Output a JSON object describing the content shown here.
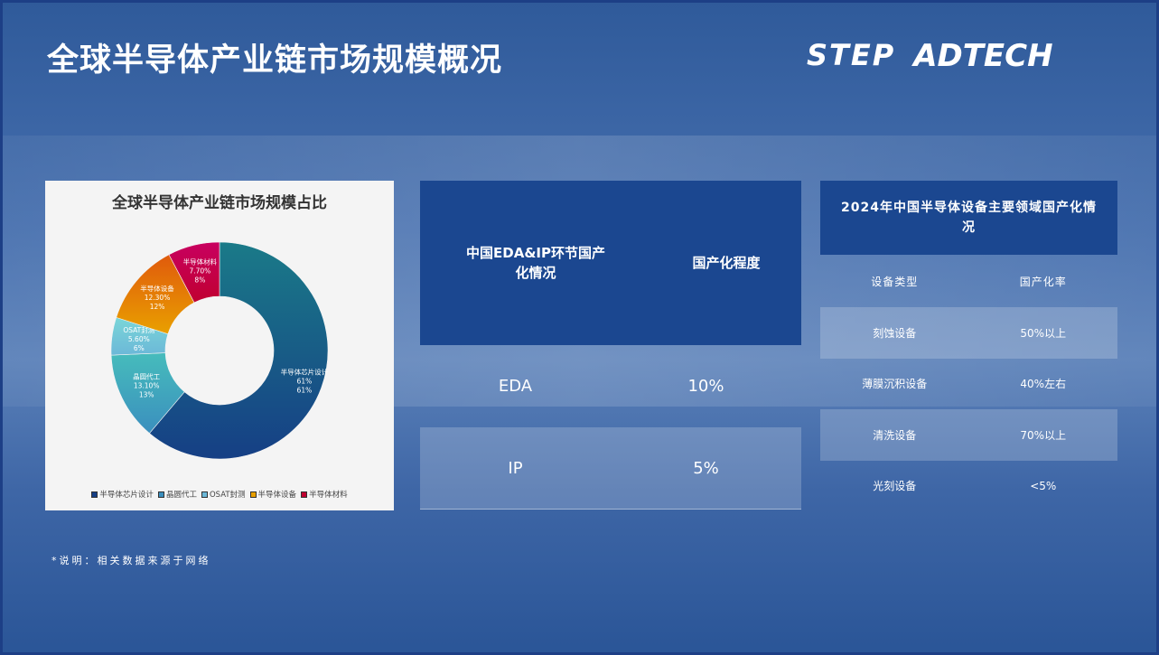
{
  "page": {
    "title": "全球半导体产业链市场规模概况",
    "logo": {
      "left": "STEP",
      "right": "ADTECH"
    },
    "note": "*说明：相关数据来源于网络"
  },
  "chart_data": {
    "type": "pie",
    "donut": true,
    "title": "全球半导体产业链市场规模占比",
    "categories": [
      "半导体芯片设计",
      "晶圆代工",
      "OSAT封测",
      "半导体设备",
      "半导体材料"
    ],
    "values": [
      61,
      13.1,
      5.6,
      12.3,
      7.7
    ],
    "value_labels": [
      "61%",
      "13.10%",
      "5.60%",
      "12.30%",
      "7.70%"
    ],
    "percent_labels": [
      "61%",
      "13%",
      "6%",
      "12%",
      "8%"
    ],
    "colors": [
      [
        "#1a7a88",
        "#163f85"
      ],
      [
        "#46bcbc",
        "#3b8fbe"
      ],
      [
        "#7ad6d8",
        "#6cb8d8"
      ],
      [
        "#e05a0c",
        "#e9a000"
      ],
      [
        "#c80060",
        "#c00030"
      ]
    ],
    "legend_placement": "bottom"
  },
  "eda_table": {
    "headers": [
      "中国EDA&IP环节国产化情况",
      "国产化程度"
    ],
    "rows": [
      [
        "EDA",
        "10%"
      ],
      [
        "IP",
        "5%"
      ]
    ]
  },
  "equip_table": {
    "title": "2024年中国半导体设备主要领域国产化情况",
    "headers": [
      "设备类型",
      "国产化率"
    ],
    "rows": [
      [
        "刻蚀设备",
        "50%以上"
      ],
      [
        "薄膜沉积设备",
        "40%左右"
      ],
      [
        "清洗设备",
        "70%以上"
      ],
      [
        "光刻设备",
        "<5%"
      ]
    ]
  }
}
